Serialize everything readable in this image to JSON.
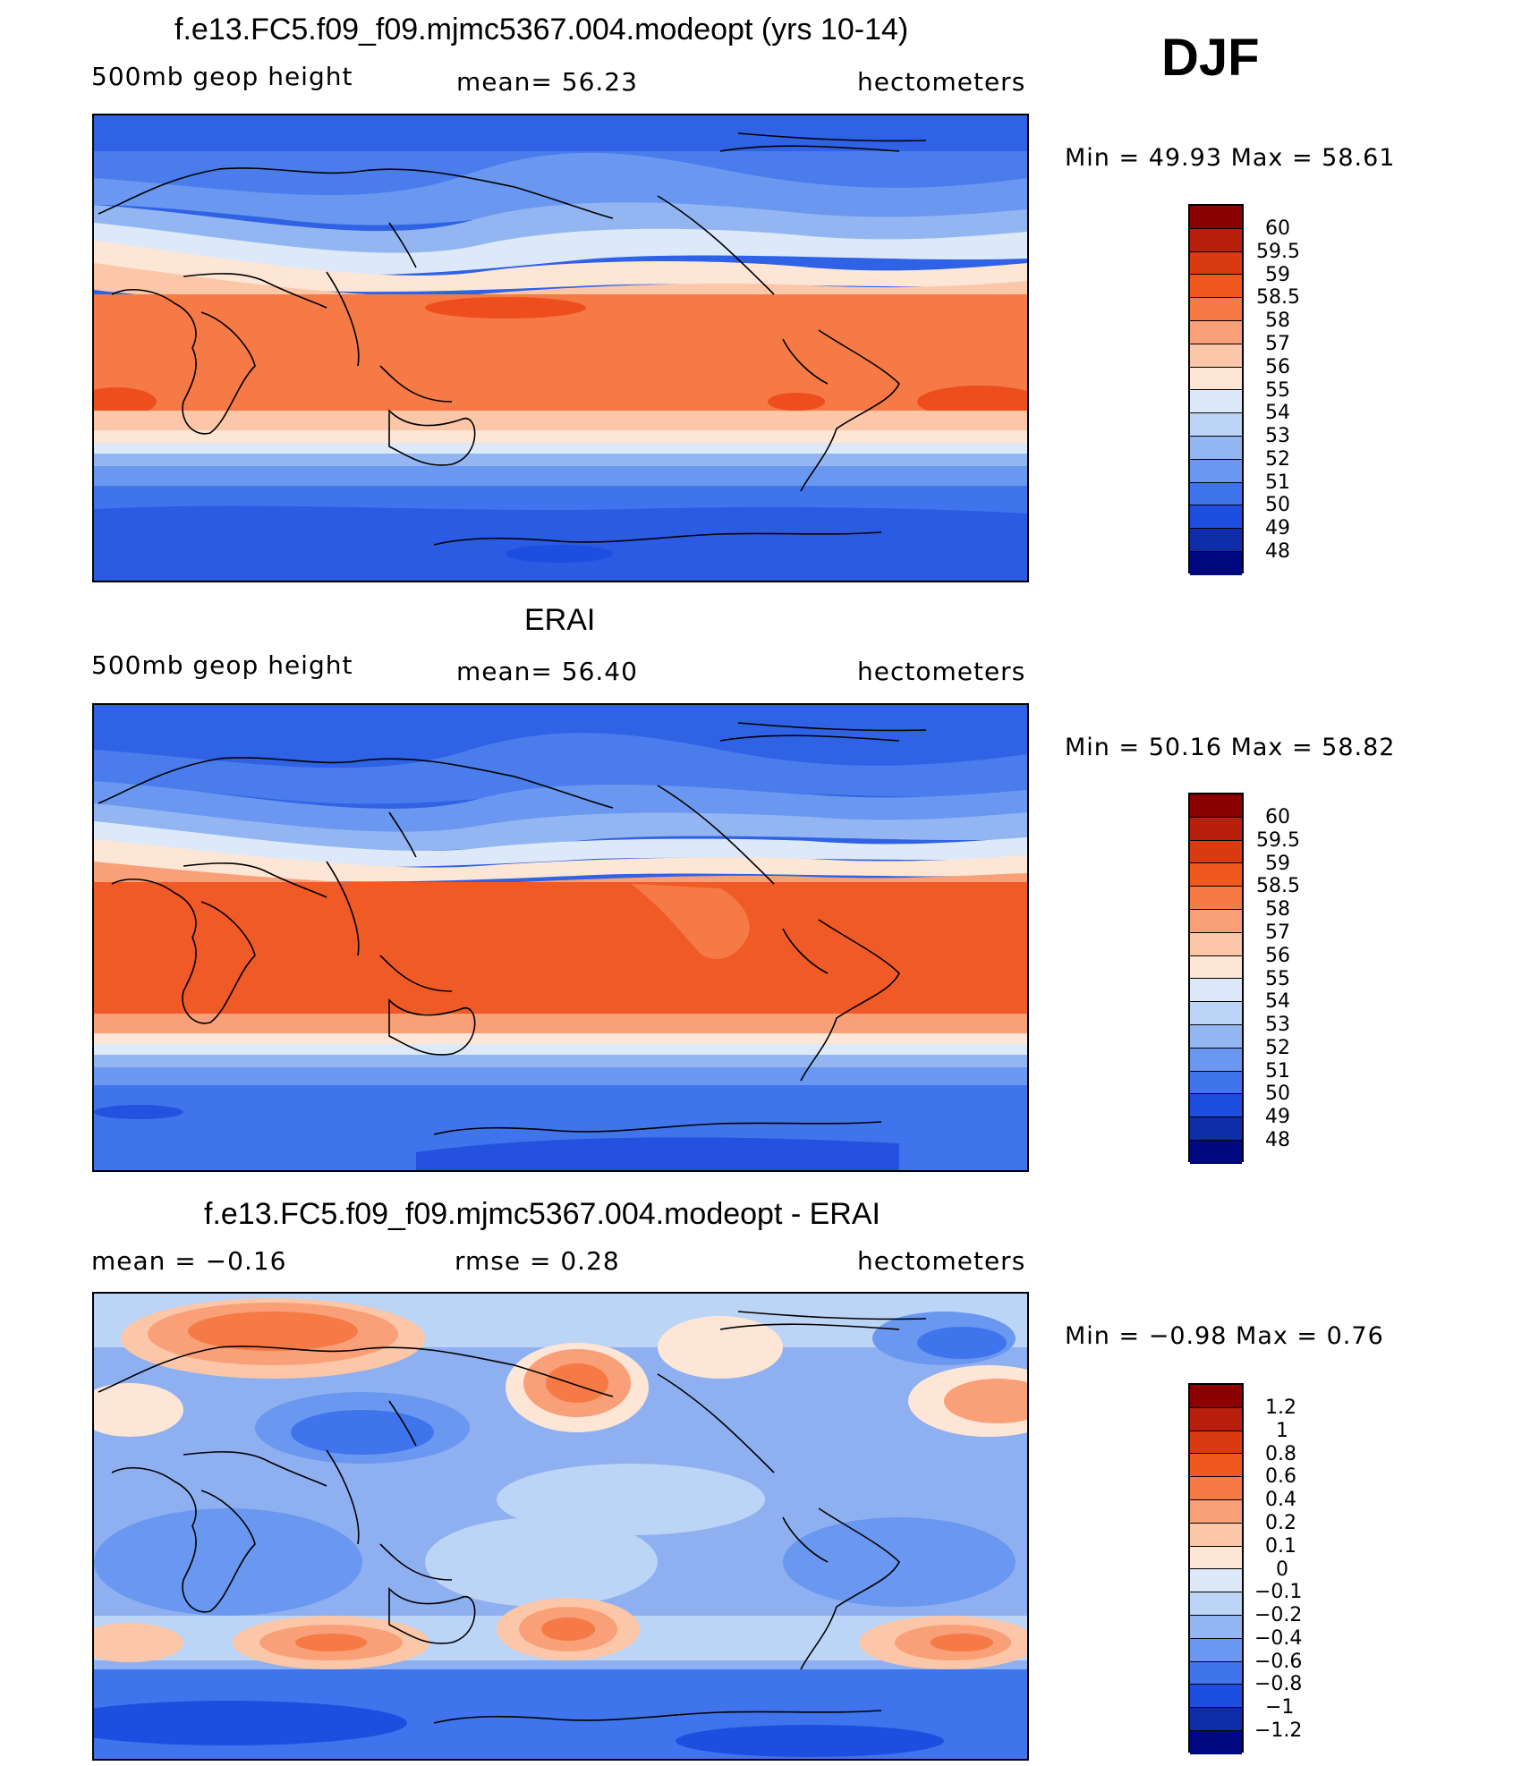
{
  "season": "DJF",
  "units": "hectometers",
  "panels": [
    {
      "id": "model",
      "title": "f.e13.FC5.f09_f09.mjmc5367.004.modeopt (yrs 10-14)",
      "left_label": "500mb  geop  height",
      "center_label": "mean=   56.23",
      "right_label": "hectometers",
      "minmax": "Min  =    49.93  Max  =    58.61",
      "levels": [
        "60",
        "59.5",
        "59",
        "58.5",
        "58",
        "57",
        "56",
        "55",
        "54",
        "53",
        "52",
        "51",
        "50",
        "49",
        "48"
      ]
    },
    {
      "id": "obs",
      "title": "ERAI",
      "left_label": "500mb  geop  height",
      "center_label": "mean=   56.40",
      "right_label": "hectometers",
      "minmax": "Min  =    50.16  Max  =    58.82",
      "levels": [
        "60",
        "59.5",
        "59",
        "58.5",
        "58",
        "57",
        "56",
        "55",
        "54",
        "53",
        "52",
        "51",
        "50",
        "49",
        "48"
      ]
    },
    {
      "id": "diff",
      "title": "f.e13.FC5.f09_f09.mjmc5367.004.modeopt - ERAI",
      "left_label": "mean  =   −0.16",
      "center_label": "rmse  =     0.28",
      "right_label": "hectometers",
      "minmax": "Min  =   −0.98  Max  =      0.76",
      "levels": [
        "1.2",
        "1",
        "0.8",
        "0.6",
        "0.4",
        "0.2",
        "0.1",
        "0",
        "−0.1",
        "−0.2",
        "−0.4",
        "−0.6",
        "−0.8",
        "−1",
        "−1.2"
      ]
    }
  ],
  "colors": {
    "colorbar": [
      "#8b0000",
      "#b81f0c",
      "#d93a10",
      "#f0581e",
      "#f57a45",
      "#f9a078",
      "#fbc7a8",
      "#fde6d6",
      "#dde9f8",
      "#bcd4f5",
      "#93b6f2",
      "#6a97ef",
      "#3f74ec",
      "#1e4ee0",
      "#0d2ea8",
      "#000880"
    ],
    "blue_deep": "#2451de",
    "blue_mid": "#4a7cec",
    "blue_light": "#8fb0f0",
    "pale_blue": "#d6e3f7",
    "pale_orange": "#fde3d3",
    "orange_light": "#f8a17b",
    "orange": "#f57a45",
    "orange_dark": "#f05a26",
    "red_orange": "#ee4d1e"
  }
}
